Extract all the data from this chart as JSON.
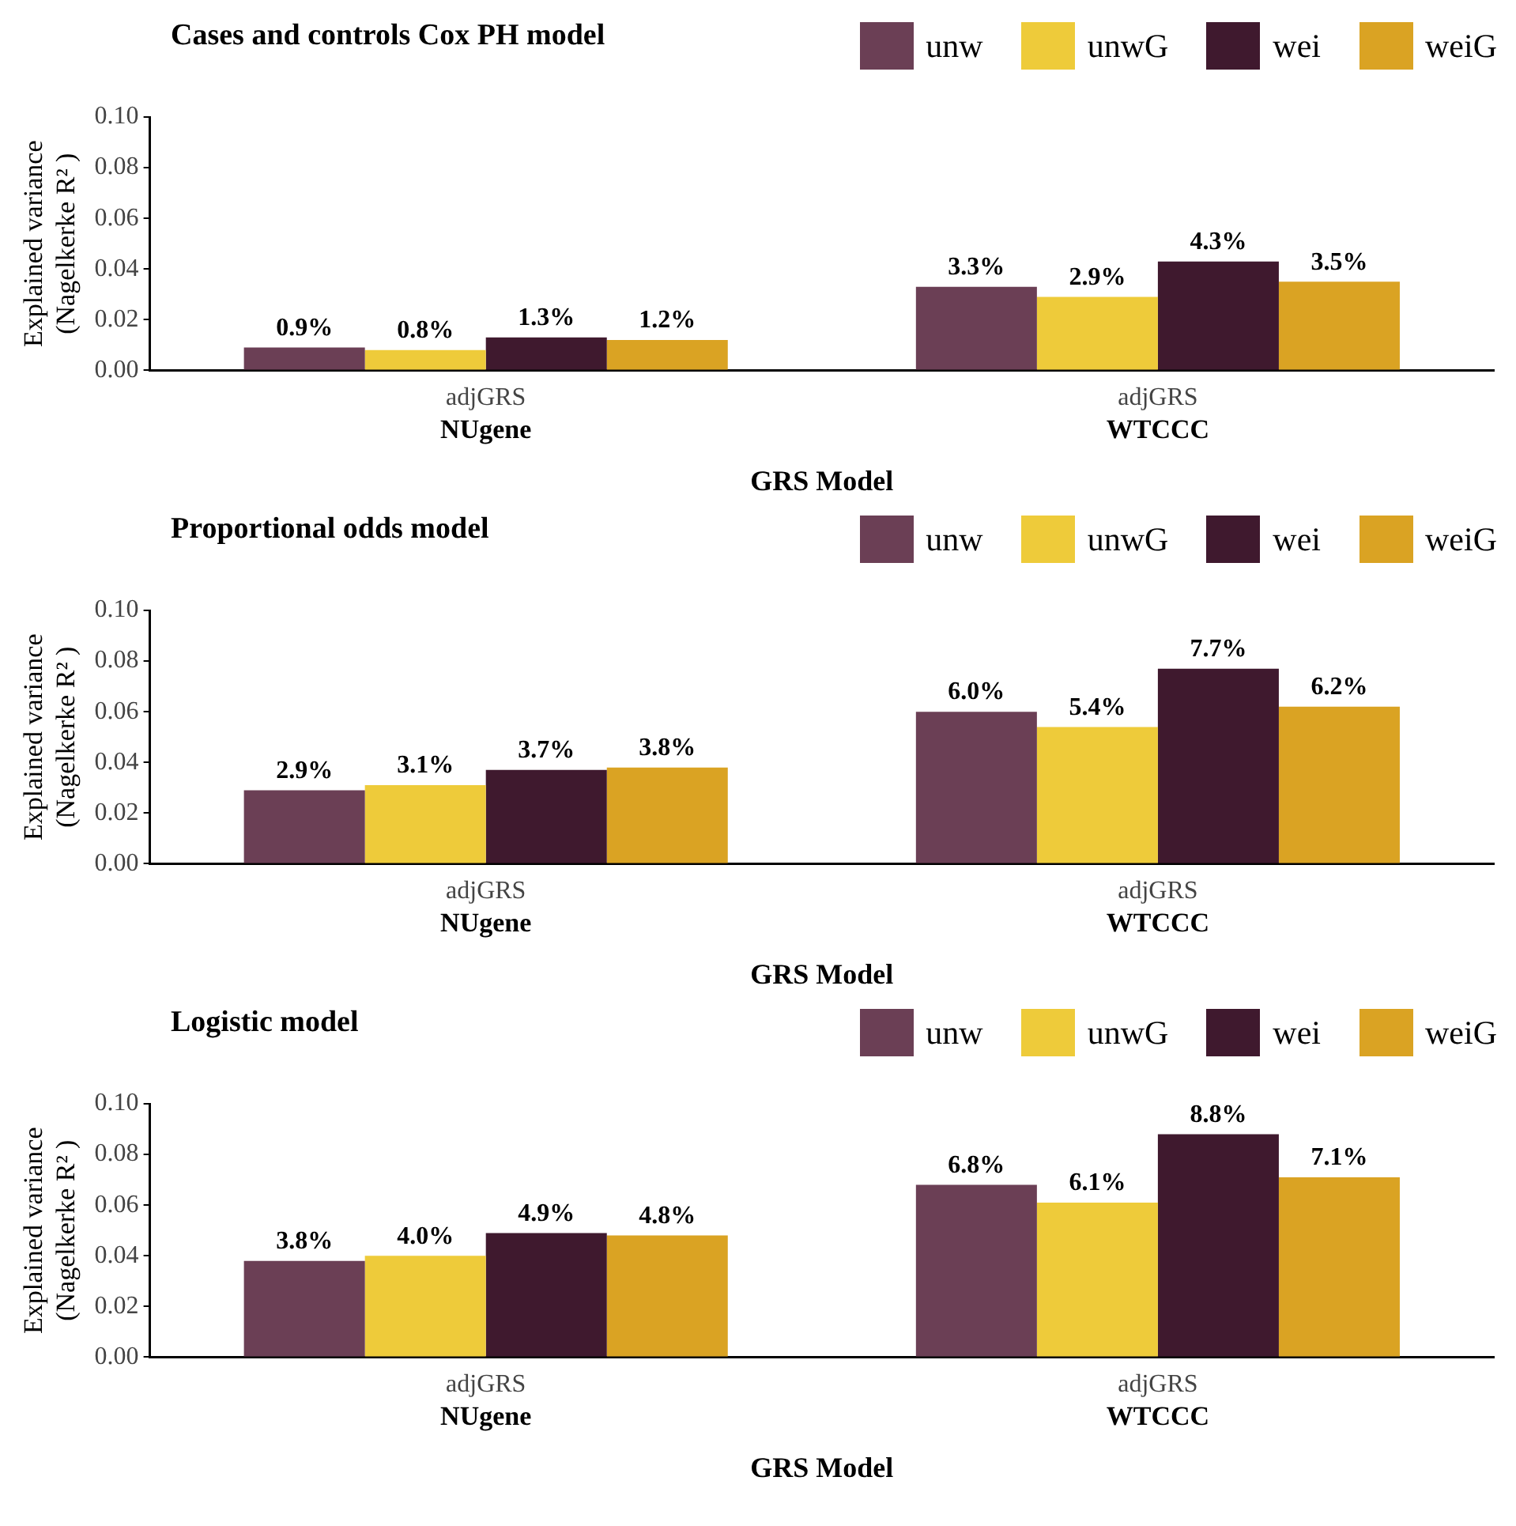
{
  "chart_data": [
    {
      "type": "bar",
      "title": "Cases and controls Cox PH model",
      "ylabel": "Explained variance\n(Nagelkerke R² )",
      "xlabel": "GRS Model",
      "annotations": [
        "NUgene",
        "WTCCC"
      ],
      "legend": "top right",
      "categories": [
        "adjGRS",
        "adjGRS"
      ],
      "ylim": [
        0,
        0.1
      ],
      "yticks": [
        {
          "value": 0,
          "label": "0.00"
        },
        {
          "value": 0.02,
          "label": "0.02"
        },
        {
          "value": 0.04,
          "label": "0.04"
        },
        {
          "value": 0.06,
          "label": "0.06"
        },
        {
          "value": 0.08,
          "label": "0.08"
        },
        {
          "value": 0.1,
          "label": "0.10"
        }
      ],
      "series": [
        {
          "name": "unw",
          "color": "#6b3f55",
          "values": [
            0.009,
            0.033
          ],
          "value_labels": [
            "0.9%",
            "3.3%"
          ]
        },
        {
          "name": "unwG",
          "color": "#eecb3a",
          "values": [
            0.008,
            0.029
          ],
          "value_labels": [
            "0.8%",
            "2.9%"
          ]
        },
        {
          "name": "wei",
          "color": "#3f192e",
          "values": [
            0.013,
            0.043
          ],
          "value_labels": [
            "1.3%",
            "4.3%"
          ]
        },
        {
          "name": "weiG",
          "color": "#daa323",
          "values": [
            0.012,
            0.035
          ],
          "value_labels": [
            "1.2%",
            "3.5%"
          ]
        }
      ]
    },
    {
      "type": "bar",
      "title": "Proportional odds model",
      "ylabel": "Explained variance\n(Nagelkerke R² )",
      "xlabel": "GRS Model",
      "annotations": [
        "NUgene",
        "WTCCC"
      ],
      "legend": "top right",
      "categories": [
        "adjGRS",
        "adjGRS"
      ],
      "ylim": [
        0,
        0.1
      ],
      "yticks": [
        {
          "value": 0,
          "label": "0.00"
        },
        {
          "value": 0.02,
          "label": "0.02"
        },
        {
          "value": 0.04,
          "label": "0.04"
        },
        {
          "value": 0.06,
          "label": "0.06"
        },
        {
          "value": 0.08,
          "label": "0.08"
        },
        {
          "value": 0.1,
          "label": "0.10"
        }
      ],
      "series": [
        {
          "name": "unw",
          "color": "#6b3f55",
          "values": [
            0.029,
            0.06
          ],
          "value_labels": [
            "2.9%",
            "6.0%"
          ]
        },
        {
          "name": "unwG",
          "color": "#eecb3a",
          "values": [
            0.031,
            0.054
          ],
          "value_labels": [
            "3.1%",
            "5.4%"
          ]
        },
        {
          "name": "wei",
          "color": "#3f192e",
          "values": [
            0.037,
            0.077
          ],
          "value_labels": [
            "3.7%",
            "7.7%"
          ]
        },
        {
          "name": "weiG",
          "color": "#daa323",
          "values": [
            0.038,
            0.062
          ],
          "value_labels": [
            "3.8%",
            "6.2%"
          ]
        }
      ]
    },
    {
      "type": "bar",
      "title": "Logistic model",
      "ylabel": "Explained variance\n(Nagelkerke R² )",
      "xlabel": "GRS Model",
      "annotations": [
        "NUgene",
        "WTCCC"
      ],
      "legend": "top right",
      "categories": [
        "adjGRS",
        "adjGRS"
      ],
      "ylim": [
        0,
        0.1
      ],
      "yticks": [
        {
          "value": 0,
          "label": "0.00"
        },
        {
          "value": 0.02,
          "label": "0.02"
        },
        {
          "value": 0.04,
          "label": "0.04"
        },
        {
          "value": 0.06,
          "label": "0.06"
        },
        {
          "value": 0.08,
          "label": "0.08"
        },
        {
          "value": 0.1,
          "label": "0.10"
        }
      ],
      "series": [
        {
          "name": "unw",
          "color": "#6b3f55",
          "values": [
            0.038,
            0.068
          ],
          "value_labels": [
            "3.8%",
            "6.8%"
          ]
        },
        {
          "name": "unwG",
          "color": "#eecb3a",
          "values": [
            0.04,
            0.061
          ],
          "value_labels": [
            "4.0%",
            "6.1%"
          ]
        },
        {
          "name": "wei",
          "color": "#3f192e",
          "values": [
            0.049,
            0.088
          ],
          "value_labels": [
            "4.9%",
            "8.8%"
          ]
        },
        {
          "name": "weiG",
          "color": "#daa323",
          "values": [
            0.048,
            0.071
          ],
          "value_labels": [
            "4.8%",
            "7.1%"
          ]
        }
      ]
    }
  ]
}
